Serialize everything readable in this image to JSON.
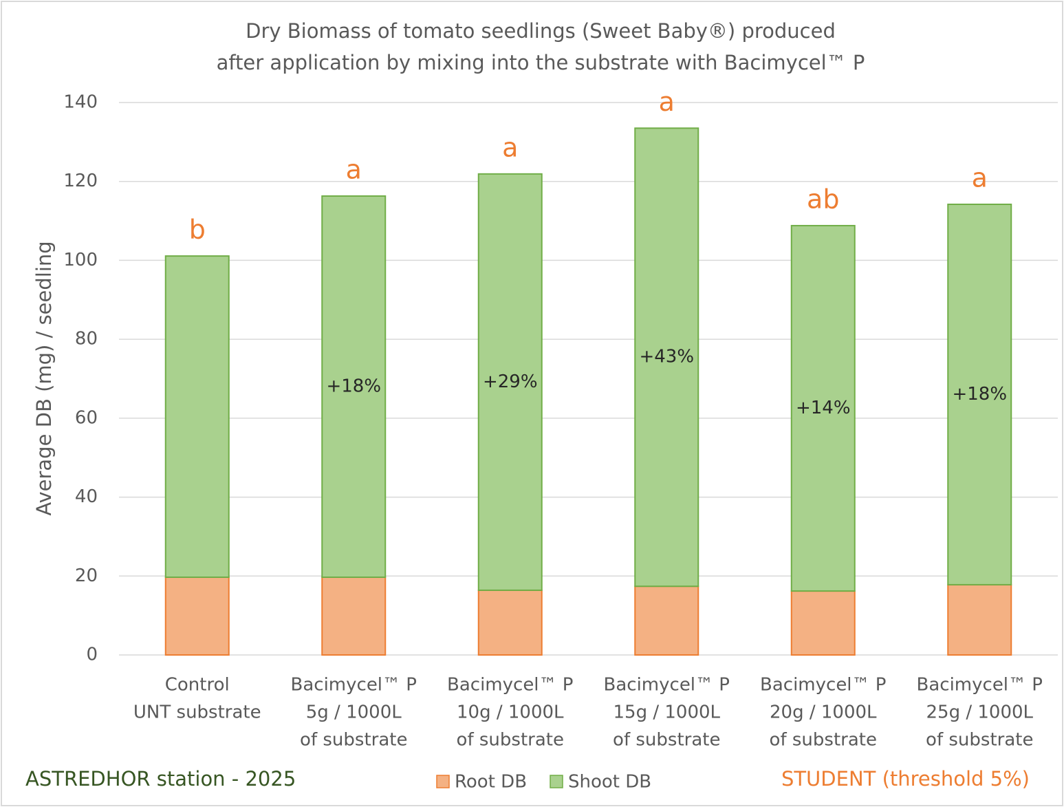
{
  "chart_data": {
    "type": "stacked_bar",
    "title": [
      "Dry Biomass of tomato seedlings (Sweet Baby®) produced",
      "after application by mixing into the substrate with Bacimycel™ P"
    ],
    "y_label": "Average DB (mg) / seedling",
    "categories": [
      [
        "Control",
        "UNT substrate"
      ],
      [
        "Bacimycel™ P",
        "5g / 1000L",
        "of substrate"
      ],
      [
        "Bacimycel™ P",
        "10g / 1000L",
        "of substrate"
      ],
      [
        "Bacimycel™ P",
        "15g / 1000L",
        "of substrate"
      ],
      [
        "Bacimycel™ P",
        "20g / 1000L",
        "of substrate"
      ],
      [
        "Bacimycel™ P",
        "25g / 1000L",
        "of substrate"
      ]
    ],
    "series": [
      {
        "name": "Root DB",
        "color": "#f4b183",
        "edge": "#ed7d31",
        "values": [
          19.7,
          19.7,
          16.4,
          17.4,
          16.2,
          17.8
        ]
      },
      {
        "name": "Shoot DB",
        "color": "#a9d18e",
        "edge": "#70ad47",
        "values": [
          81.4,
          96.6,
          105.5,
          116.1,
          92.6,
          96.4
        ]
      }
    ],
    "gain_labels": [
      null,
      "+18%",
      "+29%",
      "+43%",
      "+14%",
      "+18%"
    ],
    "significance": [
      "b",
      "a",
      "a",
      "a",
      "ab",
      "a"
    ],
    "significance_color": "#ed7d31",
    "ylim": [
      0,
      140
    ],
    "yticks": [
      0,
      20,
      40,
      60,
      80,
      100,
      120,
      140
    ],
    "grid": true,
    "legend": "bottom",
    "footer_left": "ASTREDHOR station - 2025",
    "footer_right": "STUDENT (threshold 5%)"
  }
}
